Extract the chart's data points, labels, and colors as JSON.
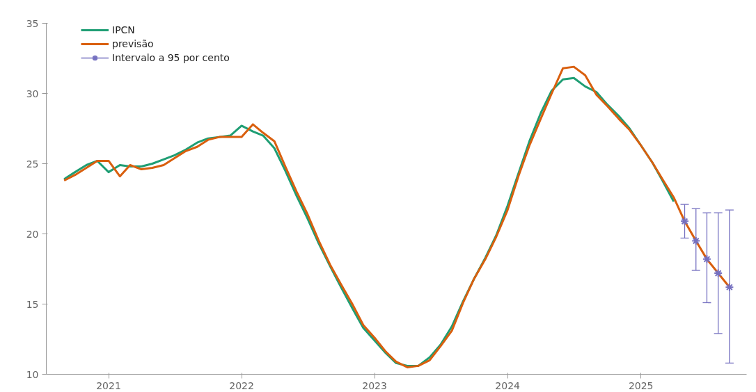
{
  "chart_data": {
    "type": "line",
    "xlim": [
      "2020-07-14",
      "2025-10-18"
    ],
    "ylim": [
      10,
      35
    ],
    "xticks": [
      "2021",
      "2022",
      "2023",
      "2024",
      "2025"
    ],
    "yticks": [
      10,
      15,
      20,
      25,
      30,
      35
    ],
    "grid": false,
    "legend": "top left",
    "line_style": "solid",
    "series": [
      {
        "name": "IPCN",
        "color": "#1f9e74",
        "x": [
          "2020-09",
          "2020-10",
          "2020-11",
          "2020-12",
          "2021-01",
          "2021-02",
          "2021-03",
          "2021-04",
          "2021-05",
          "2021-06",
          "2021-07",
          "2021-08",
          "2021-09",
          "2021-10",
          "2021-11",
          "2021-12",
          "2022-01",
          "2022-02",
          "2022-03",
          "2022-04",
          "2022-05",
          "2022-06",
          "2022-07",
          "2022-08",
          "2022-09",
          "2022-10",
          "2022-11",
          "2022-12",
          "2023-01",
          "2023-02",
          "2023-03",
          "2023-04",
          "2023-05",
          "2023-06",
          "2023-07",
          "2023-08",
          "2023-09",
          "2023-10",
          "2023-11",
          "2023-12",
          "2024-01",
          "2024-02",
          "2024-03",
          "2024-04",
          "2024-05",
          "2024-06",
          "2024-07",
          "2024-08",
          "2024-09",
          "2024-10",
          "2024-11",
          "2024-12",
          "2025-01",
          "2025-02",
          "2025-03",
          "2025-04"
        ],
        "values": [
          23.9,
          24.4,
          24.9,
          25.2,
          24.4,
          24.9,
          24.8,
          24.8,
          25.0,
          25.3,
          25.6,
          26.0,
          26.5,
          26.8,
          26.9,
          27.0,
          27.7,
          27.3,
          27.0,
          26.1,
          24.5,
          22.7,
          21.1,
          19.3,
          17.7,
          16.2,
          14.7,
          13.3,
          12.4,
          11.5,
          10.8,
          10.6,
          10.6,
          11.2,
          12.1,
          13.4,
          15.2,
          16.8,
          18.3,
          19.9,
          22.0,
          24.4,
          26.6,
          28.6,
          30.2,
          31.0,
          31.1,
          30.5,
          30.1,
          29.2,
          28.4,
          27.5,
          26.3,
          25.1,
          23.8,
          22.3
        ]
      },
      {
        "name": "previsão",
        "color": "#d95f0e",
        "x": [
          "2020-09",
          "2020-10",
          "2020-11",
          "2020-12",
          "2021-01",
          "2021-02",
          "2021-03",
          "2021-04",
          "2021-05",
          "2021-06",
          "2021-07",
          "2021-08",
          "2021-09",
          "2021-10",
          "2021-11",
          "2021-12",
          "2022-01",
          "2022-02",
          "2022-03",
          "2022-04",
          "2022-05",
          "2022-06",
          "2022-07",
          "2022-08",
          "2022-09",
          "2022-10",
          "2022-11",
          "2022-12",
          "2023-01",
          "2023-02",
          "2023-03",
          "2023-04",
          "2023-05",
          "2023-06",
          "2023-07",
          "2023-08",
          "2023-09",
          "2023-10",
          "2023-11",
          "2023-12",
          "2024-01",
          "2024-02",
          "2024-03",
          "2024-04",
          "2024-05",
          "2024-06",
          "2024-07",
          "2024-08",
          "2024-09",
          "2024-10",
          "2024-11",
          "2024-12",
          "2025-01",
          "2025-02",
          "2025-03",
          "2025-04",
          "2025-05",
          "2025-06",
          "2025-07",
          "2025-08",
          "2025-09"
        ],
        "values": [
          23.8,
          24.2,
          24.7,
          25.2,
          25.2,
          24.1,
          24.9,
          24.6,
          24.7,
          24.9,
          25.4,
          25.9,
          26.2,
          26.7,
          26.9,
          26.9,
          26.9,
          27.8,
          27.2,
          26.6,
          24.8,
          23.0,
          21.4,
          19.5,
          17.8,
          16.4,
          15.0,
          13.5,
          12.6,
          11.6,
          10.9,
          10.5,
          10.6,
          11.0,
          12.0,
          13.1,
          15.1,
          16.8,
          18.2,
          19.8,
          21.7,
          24.2,
          26.3,
          28.2,
          30.0,
          31.8,
          31.9,
          31.3,
          29.9,
          29.1,
          28.2,
          27.4,
          26.3,
          25.1,
          23.9,
          22.6,
          20.9,
          19.5,
          18.2,
          17.2,
          16.2
        ]
      },
      {
        "name": "Intervalo a 95 por cento",
        "type": "scatter",
        "marker": "cross",
        "color": "#7570c0",
        "x": [
          "2025-05",
          "2025-06",
          "2025-07",
          "2025-08",
          "2025-09"
        ],
        "values": [
          20.9,
          19.5,
          18.2,
          17.2,
          16.2
        ],
        "errors": [
          [
            19.7,
            22.1
          ],
          [
            17.4,
            21.8
          ],
          [
            15.1,
            21.5
          ],
          [
            12.9,
            21.5
          ],
          [
            10.8,
            21.7
          ]
        ]
      }
    ]
  }
}
